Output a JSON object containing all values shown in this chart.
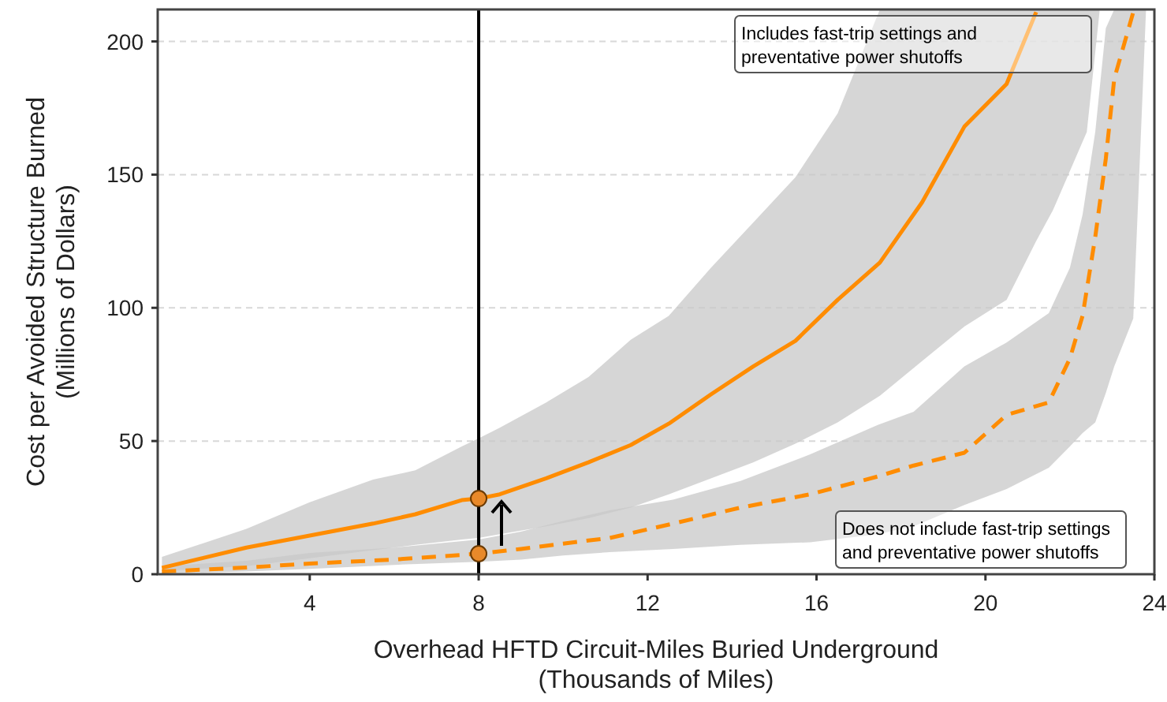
{
  "chart_data": {
    "type": "line",
    "xlabel": "Overhead HFTD Circuit-Miles Buried Underground\n(Thousands of Miles)",
    "ylabel": "Cost per Avoided Structure Burned\n(Millions of Dollars)",
    "xlim": [
      0.4,
      24
    ],
    "xticks": [
      4,
      8,
      12,
      16,
      20,
      24
    ],
    "ylim": [
      0,
      212
    ],
    "yticks": [
      0,
      50,
      100,
      150,
      200
    ],
    "grid": "y",
    "series": [
      {
        "color": "#ff8c00",
        "line_style": "solid",
        "x": [
          0.5,
          2.5,
          4,
          5.5,
          6.5,
          7.6,
          8,
          8.5,
          9.6,
          10.6,
          11.6,
          12.5,
          13.5,
          14.5,
          15.5,
          16.5,
          17.5,
          18.5,
          19.5,
          20.5,
          21.2,
          21.6,
          22.4,
          22.7
        ],
        "values": [
          2.4,
          10,
          14.5,
          19,
          22.5,
          27.8,
          28.4,
          30,
          36,
          42,
          48.5,
          56.5,
          67.5,
          78,
          87.6,
          103,
          117,
          139.6,
          168,
          184,
          211,
          null,
          null,
          null
        ],
        "lower": [
          1.2,
          3,
          6,
          9,
          11,
          13,
          13.6,
          15,
          18,
          21,
          25,
          30,
          36,
          42,
          49,
          57,
          67,
          80,
          93,
          103,
          125,
          136.7,
          166,
          211
        ],
        "upper": [
          6.5,
          17,
          27,
          35.5,
          39,
          48,
          51,
          55,
          64.5,
          74,
          88,
          97,
          115,
          132,
          149,
          173,
          212,
          212,
          212,
          212,
          212,
          212,
          212,
          212
        ]
      },
      {
        "color": "#ff8c00",
        "line_style": "dashed",
        "x": [
          0.5,
          2.5,
          4,
          6,
          8,
          9,
          10,
          11.1,
          12.6,
          14.2,
          15.85,
          17.45,
          18.3,
          19.5,
          20.5,
          21.5,
          22,
          22.3,
          22.6,
          22.85,
          23.05,
          23.5,
          23.8
        ],
        "values": [
          1,
          2.5,
          4,
          5.5,
          7.7,
          9.5,
          11.5,
          13.6,
          19,
          25,
          30,
          36.7,
          40.8,
          45.6,
          59.8,
          64.5,
          81,
          97,
          126.6,
          156,
          186,
          211,
          null
        ],
        "lower": [
          0.3,
          1,
          2,
          3.5,
          4.7,
          5.5,
          7,
          8.3,
          9.5,
          11,
          12,
          15,
          18,
          26,
          32,
          40,
          48,
          53,
          57,
          68,
          78,
          96,
          211
        ],
        "upper": [
          3,
          5,
          8,
          10,
          13,
          16,
          20,
          24,
          28,
          35,
          45,
          56,
          61,
          78,
          87,
          98,
          115,
          135,
          166,
          205,
          212,
          212,
          212
        ]
      },
      {
        "type": "scatter",
        "color": "#e8892a",
        "marker": "circle",
        "x": [
          8,
          8
        ],
        "values": [
          28.4,
          7.7
        ]
      }
    ],
    "ref_lines": [
      {
        "axis": "x",
        "value": 8,
        "color": "#000000",
        "line_style": "solid"
      }
    ],
    "annotations": [
      "Includes fast-trip settings and\npreventative power shutoffs",
      "Does not include fast-trip settings\nand preventative power shutoffs"
    ]
  }
}
